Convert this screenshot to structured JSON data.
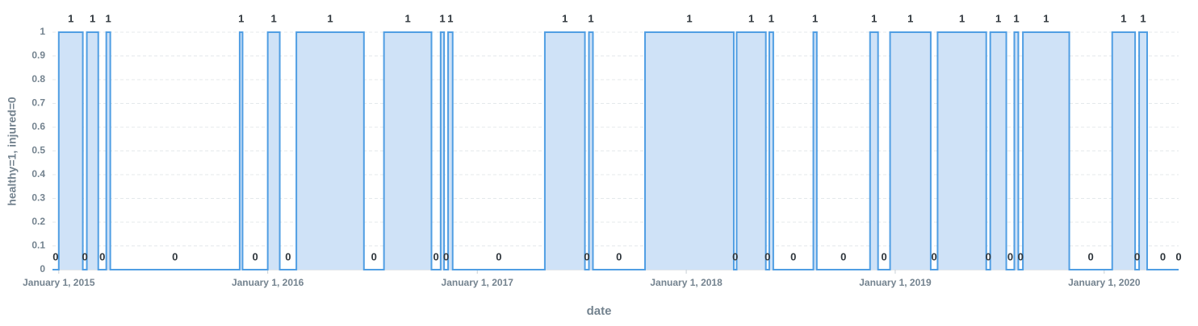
{
  "chart_data": {
    "type": "step-area",
    "x_label": "date",
    "y_label": "healthy=1, injured=0",
    "x": [
      "2014-12-21",
      "2015-01-01",
      "2015-02-12",
      "2015-02-19",
      "2015-03-11",
      "2015-03-25",
      "2015-04-01",
      "2015-11-13",
      "2015-11-18",
      "2016-01-01",
      "2016-01-22",
      "2016-02-20",
      "2016-06-17",
      "2016-07-22",
      "2016-10-13",
      "2016-10-29",
      "2016-11-04",
      "2016-11-11",
      "2016-11-19",
      "2017-04-29",
      "2017-07-08",
      "2017-07-15",
      "2017-07-22",
      "2017-10-21",
      "2018-03-25",
      "2018-03-30",
      "2018-05-20",
      "2018-05-26",
      "2018-06-02",
      "2018-08-11",
      "2018-08-17",
      "2018-11-18",
      "2018-12-02",
      "2018-12-23",
      "2019-03-04",
      "2019-03-16",
      "2019-06-09",
      "2019-06-16",
      "2019-07-14",
      "2019-07-28",
      "2019-08-04",
      "2019-08-12",
      "2019-11-01",
      "2020-01-15",
      "2020-02-24",
      "2020-03-02",
      "2020-03-16",
      "2020-05-10"
    ],
    "series": [
      {
        "color": "#509ee3",
        "fill": "#cfe2f7",
        "values": [
          0,
          1,
          0,
          1,
          0,
          1,
          0,
          1,
          0,
          1,
          0,
          1,
          0,
          1,
          0,
          1,
          0,
          1,
          0,
          1,
          0,
          1,
          0,
          1,
          0,
          1,
          0,
          1,
          0,
          1,
          0,
          1,
          0,
          1,
          0,
          1,
          0,
          1,
          0,
          1,
          0,
          1,
          0,
          1,
          0,
          1,
          0,
          0
        ]
      }
    ],
    "xlim": [
      "2014-12-21",
      "2020-05-10"
    ],
    "xticks": [
      {
        "value": "2015-01-01",
        "label": "January 1, 2015"
      },
      {
        "value": "2016-01-01",
        "label": "January 1, 2016"
      },
      {
        "value": "2017-01-01",
        "label": "January 1, 2017"
      },
      {
        "value": "2018-01-01",
        "label": "January 1, 2018"
      },
      {
        "value": "2019-01-01",
        "label": "January 1, 2019"
      },
      {
        "value": "2020-01-01",
        "label": "January 1, 2020"
      }
    ],
    "ylim": [
      0,
      1
    ],
    "yticks": [
      0,
      0.1,
      0.2,
      0.3,
      0.4,
      0.5,
      0.6,
      0.7,
      0.8,
      0.9,
      1
    ],
    "grid": true
  }
}
